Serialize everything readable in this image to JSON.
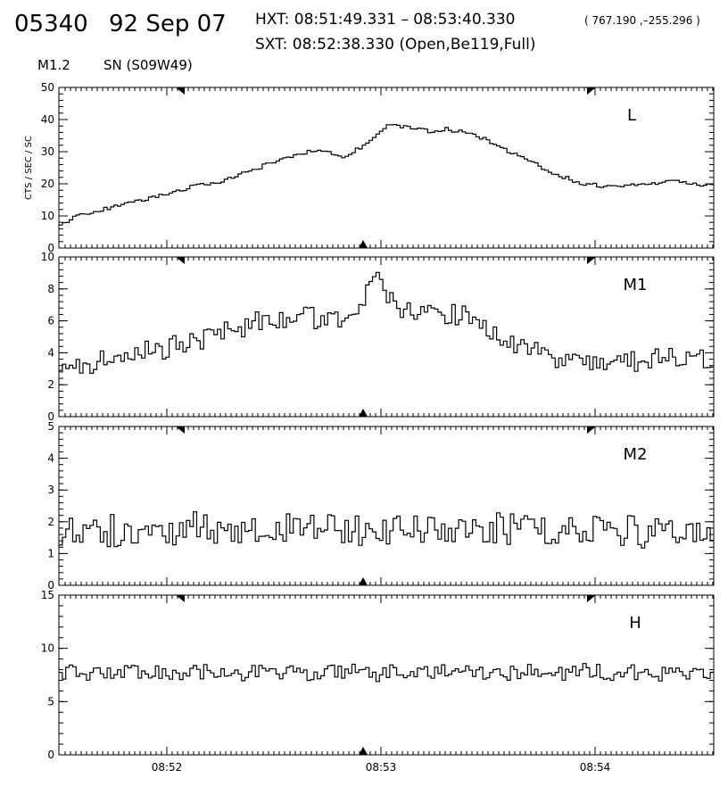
{
  "header": {
    "id": "05340",
    "date": "92 Sep 07",
    "hxt": "HXT: 08:51:49.331 – 08:53:40.330",
    "coords": "( 767.190 ,–255.296 )",
    "sxt": "SXT: 08:52:38.330 (Open,Be119,Full)",
    "class": "M1.2",
    "position": "SN (S09W49)"
  },
  "chart_data": {
    "type": "line",
    "step": true,
    "ylabel": "CTS / SEC / SC",
    "x_ticks": [
      "08:52",
      "08:53",
      "08:54"
    ],
    "grid": false,
    "panels": [
      {
        "name": "L",
        "ylim": [
          0,
          50
        ],
        "y_ticks": [
          "0",
          "10",
          "20",
          "30",
          "40",
          "50"
        ],
        "anchors": [
          [
            0,
            7
          ],
          [
            5,
            10
          ],
          [
            12,
            12
          ],
          [
            25,
            15
          ],
          [
            38,
            19
          ],
          [
            48,
            21
          ],
          [
            55,
            24
          ],
          [
            65,
            28
          ],
          [
            72,
            30
          ],
          [
            78,
            30
          ],
          [
            82,
            28
          ],
          [
            88,
            32
          ],
          [
            92,
            36
          ],
          [
            95,
            38
          ],
          [
            100,
            38
          ],
          [
            108,
            36
          ],
          [
            112,
            37
          ],
          [
            118,
            36
          ],
          [
            125,
            33
          ],
          [
            132,
            29
          ],
          [
            140,
            25
          ],
          [
            146,
            22
          ],
          [
            152,
            20
          ],
          [
            160,
            19
          ],
          [
            170,
            20
          ],
          [
            178,
            21
          ],
          [
            185,
            20
          ],
          [
            190,
            19
          ]
        ],
        "noise": 0.6
      },
      {
        "name": "M1",
        "ylim": [
          0,
          10
        ],
        "y_ticks": [
          "0",
          "2",
          "4",
          "6",
          "8",
          "10"
        ],
        "anchors": [
          [
            0,
            3
          ],
          [
            10,
            3.3
          ],
          [
            20,
            3.8
          ],
          [
            30,
            4.2
          ],
          [
            40,
            4.8
          ],
          [
            50,
            5.5
          ],
          [
            60,
            6
          ],
          [
            70,
            6.3
          ],
          [
            76,
            6
          ],
          [
            80,
            5.9
          ],
          [
            85,
            6.6
          ],
          [
            90,
            8
          ],
          [
            93,
            8.4
          ],
          [
            96,
            7.5
          ],
          [
            100,
            6.5
          ],
          [
            110,
            6.5
          ],
          [
            118,
            6.3
          ],
          [
            125,
            5.3
          ],
          [
            132,
            4.5
          ],
          [
            138,
            3.9
          ],
          [
            145,
            3.5
          ],
          [
            150,
            3.4
          ],
          [
            160,
            3.4
          ],
          [
            170,
            3.5
          ],
          [
            180,
            3.6
          ],
          [
            190,
            3.5
          ]
        ],
        "noise": 0.5
      },
      {
        "name": "M2",
        "ylim": [
          0,
          5
        ],
        "y_ticks": [
          "0",
          "1",
          "2",
          "3",
          "4",
          "5"
        ],
        "anchors": [
          [
            0,
            1.7
          ],
          [
            90,
            1.8
          ],
          [
            190,
            1.7
          ]
        ],
        "noise": 0.38
      },
      {
        "name": "H",
        "ylim": [
          0,
          15
        ],
        "y_ticks": [
          "0",
          "5",
          "10",
          "15"
        ],
        "anchors": [
          [
            0,
            7.7
          ],
          [
            190,
            7.7
          ]
        ],
        "noise": 0.55
      }
    ]
  }
}
